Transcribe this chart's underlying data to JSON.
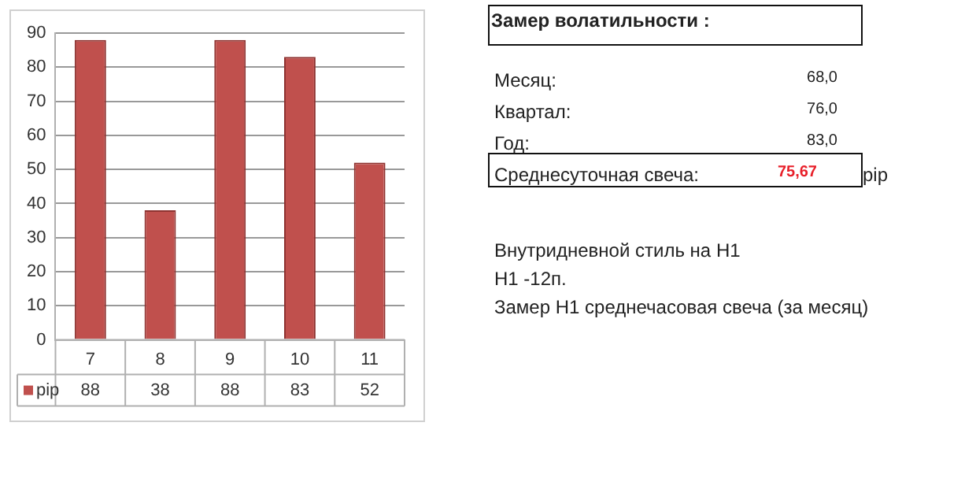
{
  "chart_data": {
    "type": "bar",
    "categories": [
      "7",
      "8",
      "9",
      "10",
      "11"
    ],
    "series": [
      {
        "name": "pip",
        "color": "#c0504d",
        "values": [
          88,
          38,
          88,
          83,
          52
        ]
      }
    ],
    "ylim": [
      0,
      90
    ],
    "yticks": [
      0,
      10,
      20,
      30,
      40,
      50,
      60,
      70,
      80,
      90
    ],
    "grid": "y",
    "legend": "bottom",
    "data_labels": true,
    "annotations": [
      "Замер  волатильности  :",
      "Месяц:",
      "68,0",
      "Квартал:",
      "76,0",
      "Год:",
      "83,0",
      "Среднесуточная свеча:",
      "75,67",
      "pip",
      "Внутридневной стиль на H1",
      "H1 -12п.",
      "Замер H1 среднечасовая свеча (за месяц)"
    ]
  }
}
